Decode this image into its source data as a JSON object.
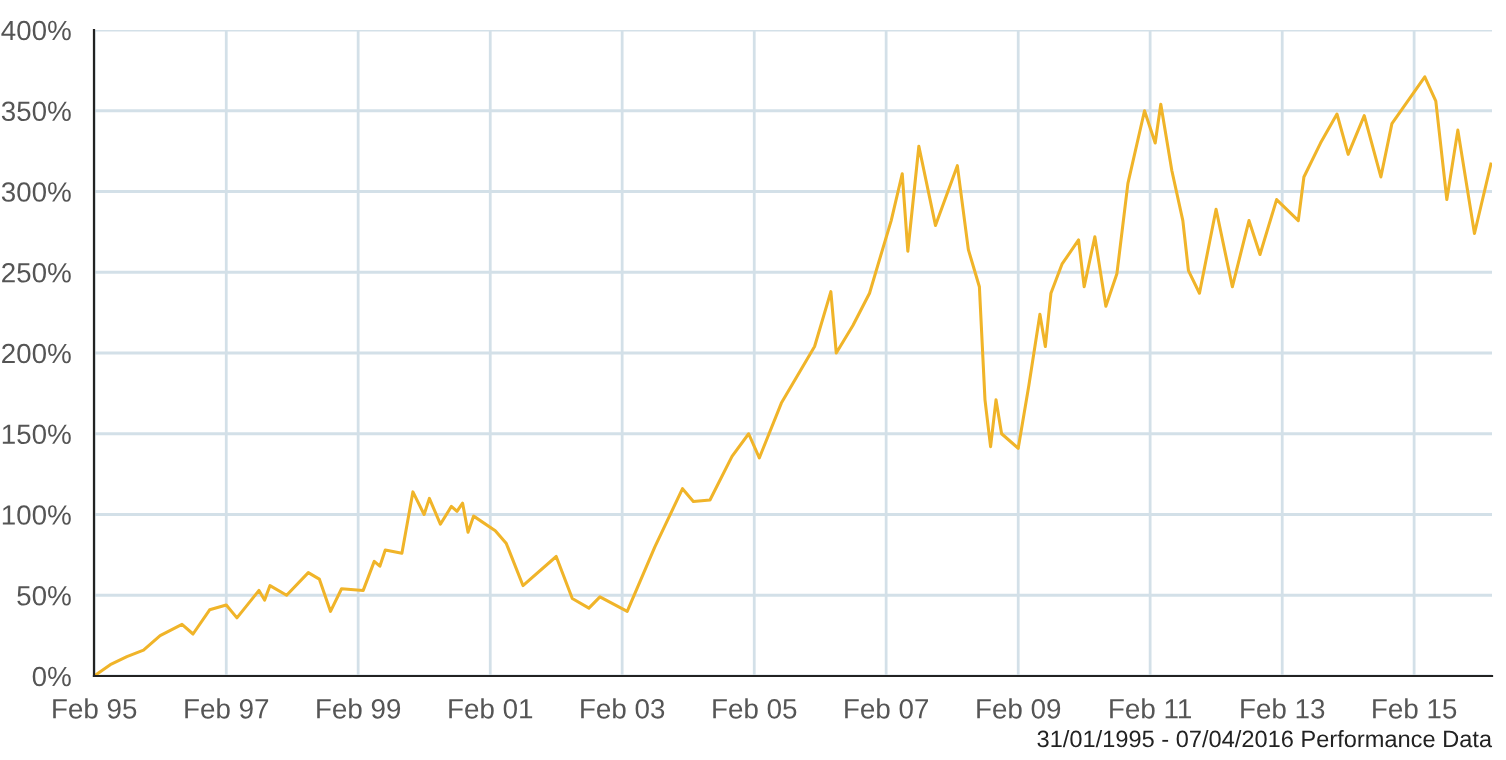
{
  "chart_data": {
    "type": "line",
    "x": [
      "1995-02",
      "1995-05",
      "1995-08",
      "1995-11",
      "1996-02",
      "1996-06",
      "1996-08",
      "1996-11",
      "1997-02",
      "1997-04",
      "1997-08",
      "1997-09",
      "1997-10",
      "1998-01",
      "1998-05",
      "1998-07",
      "1998-09",
      "1998-11",
      "1999-03",
      "1999-05",
      "1999-06",
      "1999-07",
      "1999-10",
      "1999-12",
      "2000-02",
      "2000-03",
      "2000-05",
      "2000-07",
      "2000-08",
      "2000-09",
      "2000-10",
      "2000-11",
      "2001-03",
      "2001-05",
      "2001-08",
      "2002-02",
      "2002-05",
      "2002-08",
      "2002-10",
      "2003-03",
      "2003-08",
      "2004-01",
      "2004-03",
      "2004-06",
      "2004-10",
      "2005-01",
      "2005-03",
      "2005-07",
      "2006-01",
      "2006-04",
      "2006-05",
      "2006-08",
      "2006-11",
      "2007-01",
      "2007-03",
      "2007-05",
      "2007-06",
      "2007-08",
      "2007-11",
      "2008-03",
      "2008-05",
      "2008-07",
      "2008-08",
      "2008-09",
      "2008-10",
      "2008-11",
      "2009-02",
      "2009-04",
      "2009-06",
      "2009-07",
      "2009-08",
      "2009-10",
      "2010-01",
      "2010-02",
      "2010-04",
      "2010-06",
      "2010-08",
      "2010-10",
      "2011-01",
      "2011-03",
      "2011-04",
      "2011-06",
      "2011-08",
      "2011-09",
      "2011-11",
      "2012-02",
      "2012-05",
      "2012-08",
      "2012-10",
      "2013-01",
      "2013-05",
      "2013-06",
      "2013-09",
      "2013-12",
      "2014-02",
      "2014-05",
      "2014-08",
      "2014-10",
      "2015-04",
      "2015-06",
      "2015-08",
      "2015-10",
      "2016-01",
      "2016-04"
    ],
    "series": [
      {
        "color": "#f0b429",
        "values": [
          0,
          7,
          12,
          16,
          25,
          32,
          26,
          41,
          44,
          36,
          53,
          47,
          56,
          50,
          64,
          60,
          40,
          54,
          53,
          71,
          68,
          78,
          76,
          114,
          100,
          110,
          94,
          105,
          102,
          107,
          89,
          99,
          90,
          82,
          56,
          74,
          48,
          42,
          49,
          40,
          80,
          116,
          108,
          109,
          136,
          150,
          135,
          169,
          204,
          238,
          200,
          217,
          237,
          260,
          282,
          311,
          263,
          328,
          279,
          316,
          264,
          241,
          171,
          142,
          171,
          150,
          141,
          180,
          224,
          204,
          237,
          255,
          270,
          241,
          272,
          229,
          249,
          305,
          350,
          330,
          354,
          313,
          282,
          251,
          237,
          289,
          241,
          282,
          261,
          295,
          282,
          309,
          330,
          348,
          323,
          347,
          309,
          342,
          371,
          356,
          295,
          338,
          274,
          317
        ]
      }
    ],
    "xlim": [
      "1995-01-31",
      "2016-04-07"
    ],
    "xticks": [
      {
        "value": "1995-02-01",
        "label": "Feb 95"
      },
      {
        "value": "1997-02-01",
        "label": "Feb 97"
      },
      {
        "value": "1999-02-01",
        "label": "Feb 99"
      },
      {
        "value": "2001-02-01",
        "label": "Feb 01"
      },
      {
        "value": "2003-02-01",
        "label": "Feb 03"
      },
      {
        "value": "2005-02-01",
        "label": "Feb 05"
      },
      {
        "value": "2007-02-01",
        "label": "Feb 07"
      },
      {
        "value": "2009-02-01",
        "label": "Feb 09"
      },
      {
        "value": "2011-02-01",
        "label": "Feb 11"
      },
      {
        "value": "2013-02-01",
        "label": "Feb 13"
      },
      {
        "value": "2015-02-01",
        "label": "Feb 15"
      }
    ],
    "ylim": [
      0,
      400
    ],
    "yticks": [
      {
        "value": 0,
        "label": "0%"
      },
      {
        "value": 50,
        "label": "50%"
      },
      {
        "value": 100,
        "label": "100%"
      },
      {
        "value": 150,
        "label": "150%"
      },
      {
        "value": 200,
        "label": "200%"
      },
      {
        "value": 250,
        "label": "250%"
      },
      {
        "value": 300,
        "label": "300%"
      },
      {
        "value": 350,
        "label": "350%"
      },
      {
        "value": 400,
        "label": "400%"
      }
    ],
    "grid": true,
    "line_style": "solid",
    "annotations": [
      "31/01/1995 - 07/04/2016 Performance Data"
    ]
  }
}
